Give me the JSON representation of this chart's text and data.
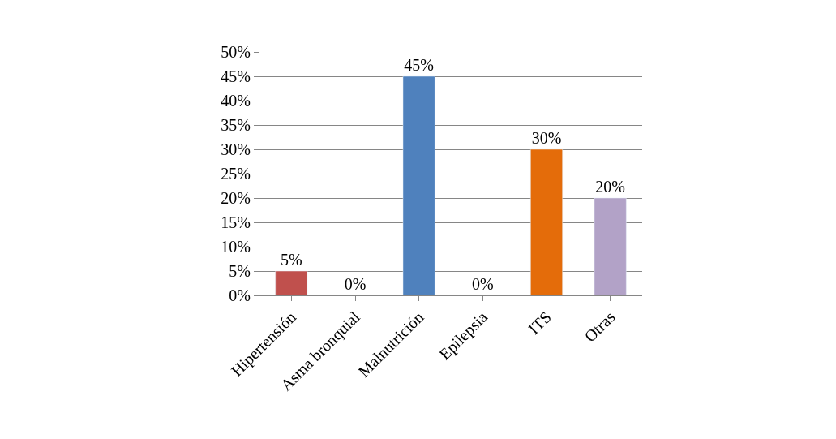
{
  "chart_data": {
    "type": "bar",
    "categories": [
      "Hipertensión",
      "Asma bronquial",
      "Malnutrición",
      "Epilepsia",
      "ITS",
      "Otras"
    ],
    "values": [
      5,
      0,
      45,
      0,
      30,
      20
    ],
    "colors": [
      "#c0504d",
      null,
      "#4f81bd",
      null,
      "#e46c0a",
      "#b2a2c7"
    ],
    "value_labels": [
      "5%",
      "0%",
      "45%",
      "0%",
      "30%",
      "20%"
    ],
    "ylim": [
      0,
      50
    ],
    "yticks": [
      {
        "value": 0,
        "label": "0%"
      },
      {
        "value": 5,
        "label": "5%"
      },
      {
        "value": 10,
        "label": "10%"
      },
      {
        "value": 15,
        "label": "15%"
      },
      {
        "value": 20,
        "label": "20%"
      },
      {
        "value": 25,
        "label": "25%"
      },
      {
        "value": 30,
        "label": "30%"
      },
      {
        "value": 35,
        "label": "35%"
      },
      {
        "value": 40,
        "label": "40%"
      },
      {
        "value": 45,
        "label": "45%"
      },
      {
        "value": 50,
        "label": "50%"
      }
    ],
    "grid": "y"
  }
}
